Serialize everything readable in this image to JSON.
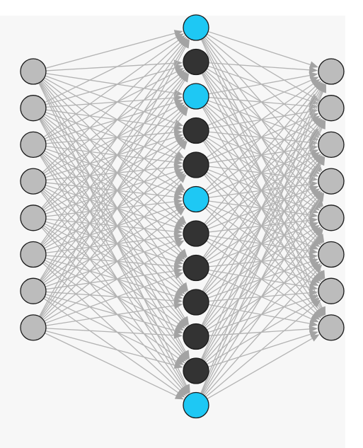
{
  "diagram": {
    "type": "neural-network",
    "layers": [
      {
        "name": "input",
        "neurons": 8,
        "fill": "#bcbcbc"
      },
      {
        "name": "hidden",
        "neurons": 12,
        "highlighted": [
          0,
          2,
          5,
          11
        ]
      },
      {
        "name": "output",
        "neurons": 8,
        "fill": "#bcbcbc"
      }
    ],
    "connections": "fully-connected",
    "colors": {
      "background": "#ffffff",
      "panel": "#f7f7f7",
      "edge": "#b3b3b3",
      "arrowhead": "#a3a3a3",
      "node_outline": "#1a1a1a",
      "hidden_default": "#333333",
      "hidden_highlight": "#1ec8f4"
    }
  }
}
